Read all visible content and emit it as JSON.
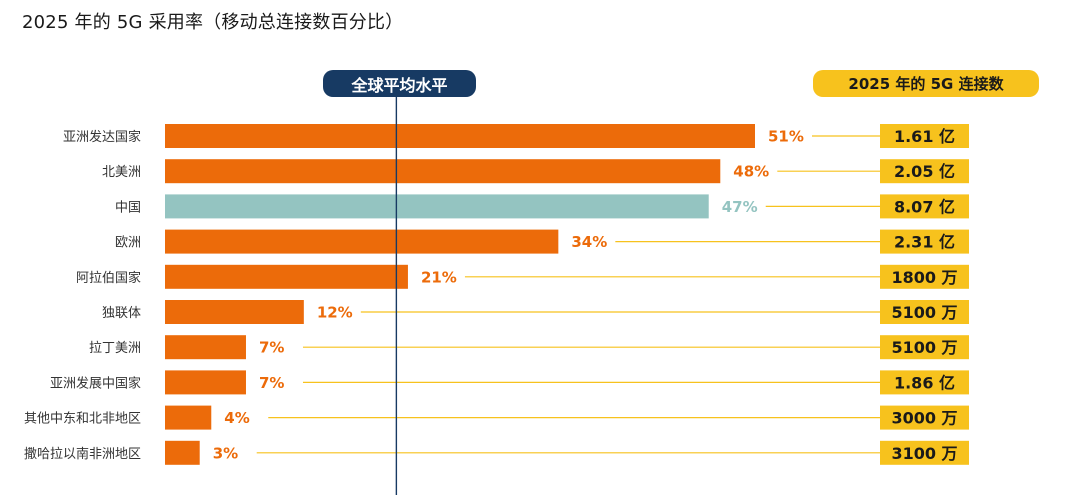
{
  "title": "2025 年的 5G 采用率（移动总连接数百分比）",
  "average_label": "全球平均水平",
  "connections_header": "2025 年的 5G 连接数",
  "colors": {
    "bar": "#ec6b0a",
    "highlight": "#94c4c1",
    "average_line": "#173a63",
    "connection_box": "#f7c21d",
    "connector_line": "#f7c21d"
  },
  "chart_data": {
    "type": "bar",
    "orientation": "horizontal",
    "title": "2025 年的 5G 采用率（移动总连接数百分比）",
    "categories": [
      "亚洲发达国家",
      "北美洲",
      "中国",
      "欧洲",
      "阿拉伯国家",
      "独联体",
      "拉丁美洲",
      "亚洲发展中国家",
      "其他中东和北非地区",
      "撒哈拉以南非洲地区"
    ],
    "values": [
      51,
      48,
      47,
      34,
      21,
      12,
      7,
      7,
      4,
      3
    ],
    "value_labels": [
      "51%",
      "48%",
      "47%",
      "34%",
      "21%",
      "12%",
      "7%",
      "7%",
      "4%",
      "3%"
    ],
    "highlight_category": "中国",
    "global_average": 20,
    "xlim": [
      0,
      51
    ],
    "connections": [
      "1.61 亿",
      "2.05 亿",
      "8.07 亿",
      "2.31 亿",
      "1800 万",
      "5100 万",
      "5100 万",
      "1.86 亿",
      "3000 万",
      "3100 万"
    ]
  }
}
